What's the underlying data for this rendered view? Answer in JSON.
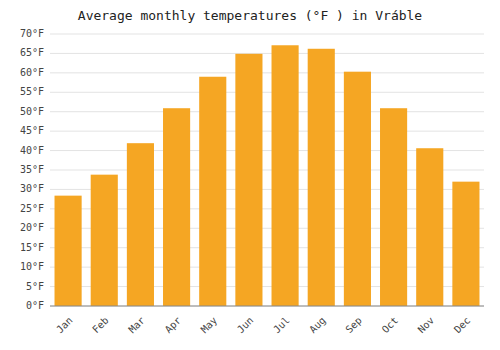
{
  "chart_data": {
    "type": "bar",
    "title": "Average monthly temperatures (°F ) in Vráble",
    "categories": [
      "Jan",
      "Feb",
      "Mar",
      "Apr",
      "May",
      "Jun",
      "Jul",
      "Aug",
      "Sep",
      "Oct",
      "Nov",
      "Dec"
    ],
    "values": [
      28.4,
      33.8,
      41.9,
      50.9,
      59.0,
      64.9,
      67.1,
      66.2,
      60.3,
      50.9,
      40.6,
      32.0
    ],
    "color": "#F5A623",
    "ylim": [
      0,
      70
    ],
    "yticks": [
      {
        "value": 0,
        "label": "0°F"
      },
      {
        "value": 5,
        "label": "5°F"
      },
      {
        "value": 10,
        "label": "10°F"
      },
      {
        "value": 15,
        "label": "15°F"
      },
      {
        "value": 20,
        "label": "20°F"
      },
      {
        "value": 25,
        "label": "25°F"
      },
      {
        "value": 30,
        "label": "30°F"
      },
      {
        "value": 35,
        "label": "35°F"
      },
      {
        "value": 40,
        "label": "40°F"
      },
      {
        "value": 45,
        "label": "45°F"
      },
      {
        "value": 50,
        "label": "50°F"
      },
      {
        "value": 55,
        "label": "55°F"
      },
      {
        "value": 60,
        "label": "60°F"
      },
      {
        "value": 65,
        "label": "65°F"
      },
      {
        "value": 70,
        "label": "70°F"
      }
    ],
    "grid": true
  }
}
